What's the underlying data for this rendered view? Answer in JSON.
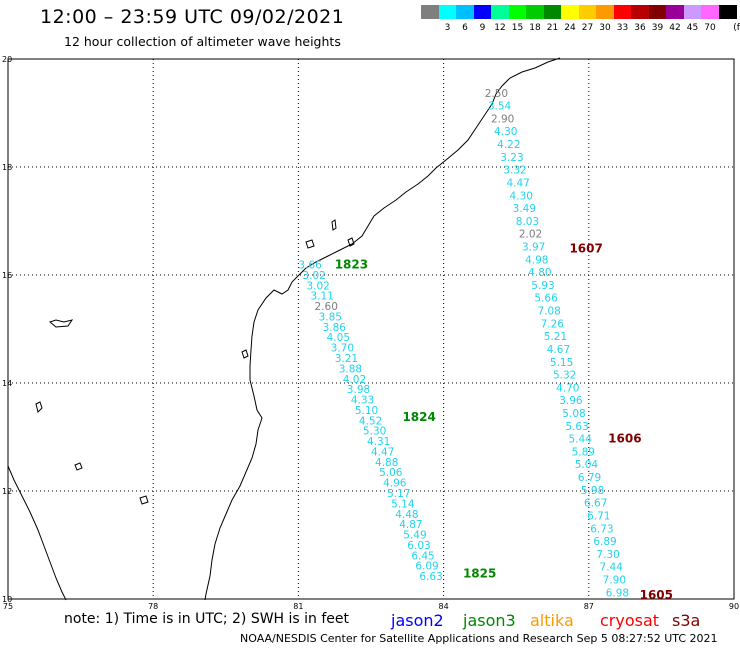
{
  "title": "12:00 – 23:59 UTC 09/02/2021",
  "subtitle": "12 hour collection of altimeter wave heights",
  "scale": {
    "unit": "(ft)",
    "swatches": [
      {
        "color": "#7f7f7f",
        "label": ""
      },
      {
        "color": "#00ffff",
        "label": "3"
      },
      {
        "color": "#00bfff",
        "label": "6"
      },
      {
        "color": "#0000ff",
        "label": "9"
      },
      {
        "color": "#00ff99",
        "label": "12"
      },
      {
        "color": "#00ff00",
        "label": "15"
      },
      {
        "color": "#00cc00",
        "label": "18"
      },
      {
        "color": "#008800",
        "label": "21"
      },
      {
        "color": "#ffff00",
        "label": "24"
      },
      {
        "color": "#ffcc00",
        "label": "27"
      },
      {
        "color": "#ff9900",
        "label": "30"
      },
      {
        "color": "#ff0000",
        "label": "33"
      },
      {
        "color": "#b80000",
        "label": "36"
      },
      {
        "color": "#800000",
        "label": "39"
      },
      {
        "color": "#990099",
        "label": "42"
      },
      {
        "color": "#cc99ff",
        "label": "45"
      },
      {
        "color": "#ff66ff",
        "label": "70"
      },
      {
        "color": "#000000",
        "label": ""
      }
    ]
  },
  "axes": {
    "lon": [
      75,
      78,
      81,
      84,
      87,
      90
    ],
    "lat": [
      10,
      12,
      14,
      16,
      18,
      20
    ],
    "lon_range": [
      75,
      90
    ],
    "lat_range": [
      10,
      20
    ]
  },
  "tracks": [
    {
      "satellite": "jason3",
      "passes": [
        {
          "label": "1823",
          "lat": 16.12,
          "lon": 81.75
        },
        {
          "label": "1824",
          "lat": 13.3,
          "lon": 83.15
        },
        {
          "label": "1825",
          "lat": 10.4,
          "lon": 84.4
        }
      ],
      "start": {
        "lat": 16.12,
        "lon": 81.0
      },
      "end": {
        "lat": 10.35,
        "lon": 83.5
      },
      "values": [
        "3.66",
        "3.02",
        "3.02",
        "3.11",
        "2.60",
        "3.85",
        "3.86",
        "4.05",
        "3.70",
        "3.21",
        "3.88",
        "4.02",
        "3.98",
        "4.33",
        "5.10",
        "4.52",
        "5.30",
        "4.31",
        "4.47",
        "4.88",
        "5.06",
        "4.96",
        "5.17",
        "5.14",
        "4.48",
        "4.87",
        "5.49",
        "6.03",
        "6.45",
        "6.09",
        "6.63"
      ]
    },
    {
      "satellite": "cryosat",
      "passes": [
        {
          "label": "1607",
          "lat": 16.42,
          "lon": 86.6
        },
        {
          "label": "1606",
          "lat": 12.9,
          "lon": 87.4
        },
        {
          "label": "1605",
          "lat": 10.0,
          "lon": 88.05
        }
      ],
      "start": {
        "lat": 19.3,
        "lon": 84.85
      },
      "end": {
        "lat": 10.05,
        "lon": 87.35
      },
      "values": [
        "2.50",
        "3.54",
        "2.90",
        "4.30",
        "4.22",
        "3.23",
        "3.32",
        "4.47",
        "4.30",
        "3.49",
        "8.03",
        "2.02",
        "3.97",
        "4.98",
        "4.80",
        "5.93",
        "5.66",
        "7.08",
        "7.26",
        "5.21",
        "4.67",
        "5.15",
        "5.32",
        "4.70",
        "3.96",
        "5.08",
        "5.63",
        "5.44",
        "5.89",
        "5.04",
        "6.79",
        "5.98",
        "6.67",
        "6.71",
        "6.73",
        "6.89",
        "7.30",
        "7.44",
        "7.90",
        "6.98"
      ]
    }
  ],
  "legend": {
    "note": "note: 1) Time is in UTC; 2) SWH is in feet",
    "satellites": [
      {
        "name": "jason2",
        "color": "#0000ff"
      },
      {
        "name": "jason3",
        "color": "#008800"
      },
      {
        "name": "altika",
        "color": "#ff9900"
      },
      {
        "name": "cryosat",
        "color": "#ff0000"
      },
      {
        "name": "s3a",
        "color": "#800000"
      }
    ]
  },
  "footer": "NOAA/NESDIS Center for Satellite Applications and Research   Sep  5 08:27:52 UTC 2021"
}
